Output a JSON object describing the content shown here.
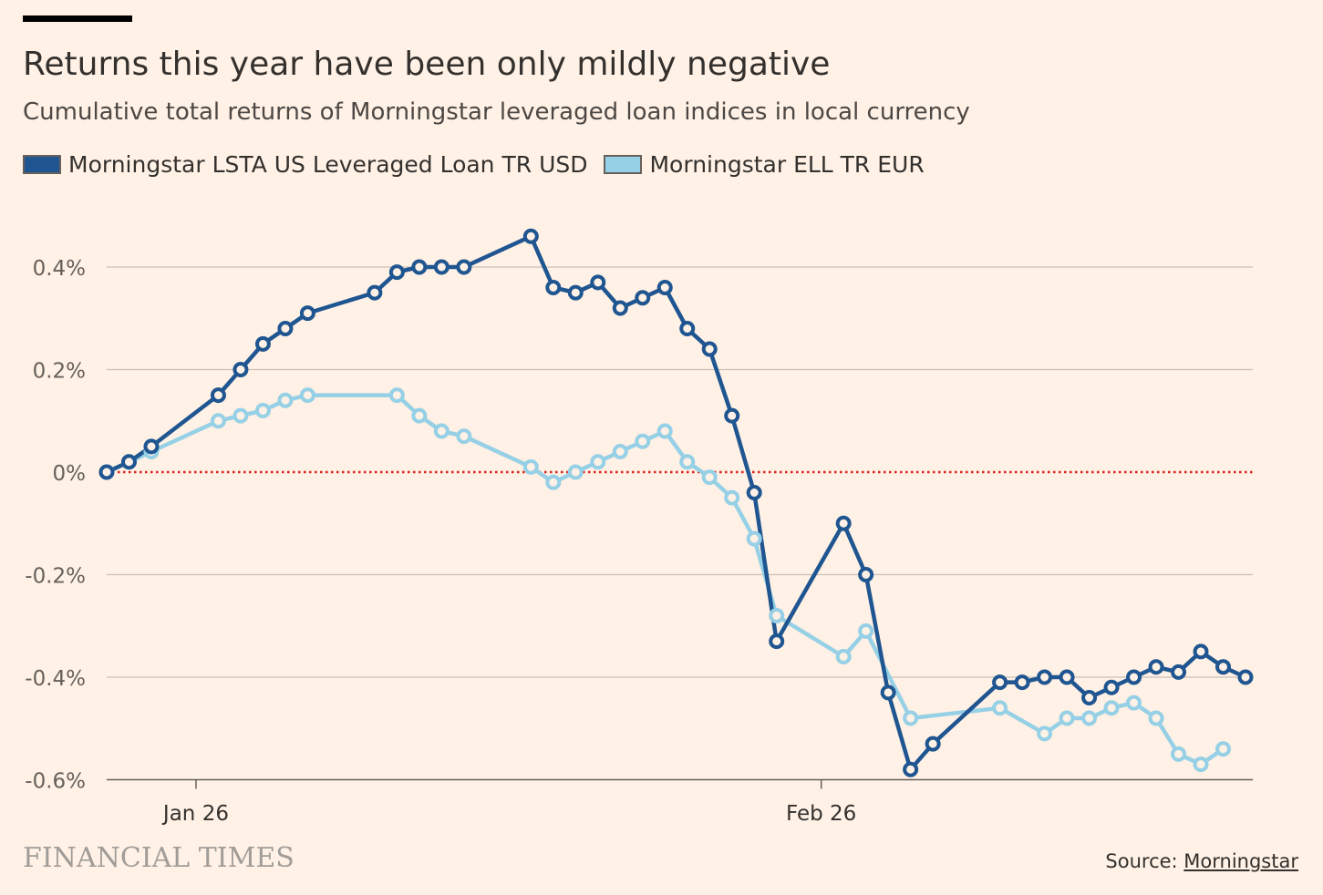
{
  "chart_data": {
    "type": "line",
    "title": "Returns this year have been only mildly negative",
    "subtitle": "Cumulative total returns of Morningstar leveraged loan indices in local currency",
    "xlabel": "",
    "ylabel": "",
    "x_unit": "day index from start",
    "xlim": [
      0,
      51.3
    ],
    "ylim": [
      -0.6,
      0.5
    ],
    "yticks": [
      {
        "value": 0.4,
        "label": "0.4%"
      },
      {
        "value": 0.2,
        "label": "0.2%"
      },
      {
        "value": 0,
        "label": "0%"
      },
      {
        "value": -0.2,
        "label": "-0.2%"
      },
      {
        "value": -0.4,
        "label": "-0.4%"
      },
      {
        "value": -0.6,
        "label": "-0.6%"
      }
    ],
    "xticks": [
      {
        "value": 4,
        "label": "Jan 26"
      },
      {
        "value": 32,
        "label": "Feb 26"
      }
    ],
    "grid": true,
    "legend_position": "top-left",
    "series": [
      {
        "name": "Morningstar LSTA US Leveraged Loan TR USD",
        "color": "#1f5590",
        "x": [
          0,
          1,
          2,
          5,
          6,
          7,
          8,
          9,
          12,
          13,
          14,
          15,
          16,
          19,
          20,
          21,
          22,
          23,
          24,
          25,
          26,
          27,
          28,
          29,
          30,
          33,
          34,
          35,
          36,
          37,
          40,
          41,
          42,
          43,
          44,
          45,
          46,
          47,
          48,
          49,
          50,
          51
        ],
        "values": [
          0,
          0.02,
          0.05,
          0.15,
          0.2,
          0.25,
          0.28,
          0.31,
          0.35,
          0.39,
          0.4,
          0.4,
          0.4,
          0.46,
          0.36,
          0.35,
          0.37,
          0.32,
          0.34,
          0.36,
          0.28,
          0.24,
          0.11,
          -0.04,
          -0.33,
          -0.1,
          -0.2,
          -0.43,
          -0.58,
          -0.53,
          -0.41,
          -0.41,
          -0.4,
          -0.4,
          -0.44,
          -0.42,
          -0.4,
          -0.38,
          -0.39,
          -0.35,
          -0.38,
          -0.4
        ]
      },
      {
        "name": "Morningstar ELL TR EUR",
        "color": "#96d0e6",
        "x": [
          0,
          1,
          2,
          5,
          6,
          7,
          8,
          9,
          13,
          14,
          15,
          16,
          19,
          20,
          21,
          22,
          23,
          24,
          25,
          26,
          27,
          28,
          29,
          30,
          33,
          34,
          36,
          40,
          42,
          43,
          44,
          45,
          46,
          47,
          48,
          49,
          50
        ],
        "values": [
          0,
          0.02,
          0.04,
          0.1,
          0.11,
          0.12,
          0.14,
          0.15,
          0.15,
          0.11,
          0.08,
          0.07,
          0.01,
          -0.02,
          0,
          0.02,
          0.04,
          0.06,
          0.08,
          0.02,
          -0.01,
          -0.05,
          -0.13,
          -0.28,
          -0.36,
          -0.31,
          -0.48,
          -0.46,
          -0.51,
          -0.48,
          -0.48,
          -0.46,
          -0.45,
          -0.48,
          -0.55,
          -0.57,
          -0.54
        ]
      }
    ],
    "zero_line_color": "#e0201b"
  },
  "footer": {
    "logo": "FINANCIAL TIMES",
    "source_prefix": "Source: ",
    "source_link": "Morningstar"
  }
}
